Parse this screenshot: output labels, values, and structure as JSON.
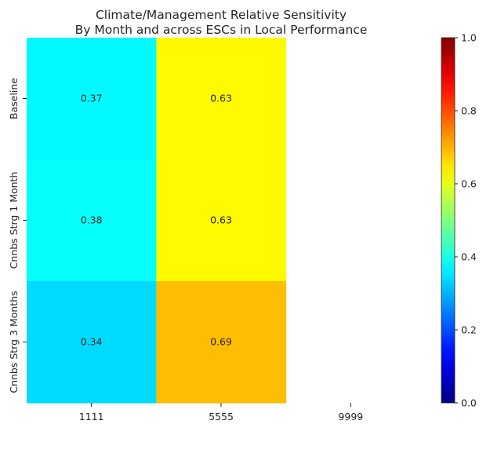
{
  "chart_data": {
    "type": "heatmap",
    "title_lines": [
      "Climate/Management Relative Sensitivity",
      "By Month and across ESCs in Local Performance"
    ],
    "x_categories": [
      "1111",
      "5555",
      "9999"
    ],
    "y_categories": [
      "Baseline",
      "Cnnbs Strg 1 Month",
      "Cnnbs Strg 3 Months"
    ],
    "values": [
      [
        0.37,
        0.63,
        null
      ],
      [
        0.38,
        0.63,
        null
      ],
      [
        0.34,
        0.69,
        null
      ]
    ],
    "value_labels": [
      [
        "0.37",
        "0.63",
        ""
      ],
      [
        "0.38",
        "0.63",
        ""
      ],
      [
        "0.34",
        "0.69",
        ""
      ]
    ],
    "colormap": "jet",
    "vmin": 0,
    "vmax": 1,
    "colorbar_ticks": [
      "0.0",
      "0.2",
      "0.4",
      "0.6",
      "0.8",
      "1.0"
    ],
    "colorbar_tick_values": [
      0,
      0.2,
      0.4,
      0.6,
      0.8,
      1.0
    ]
  }
}
